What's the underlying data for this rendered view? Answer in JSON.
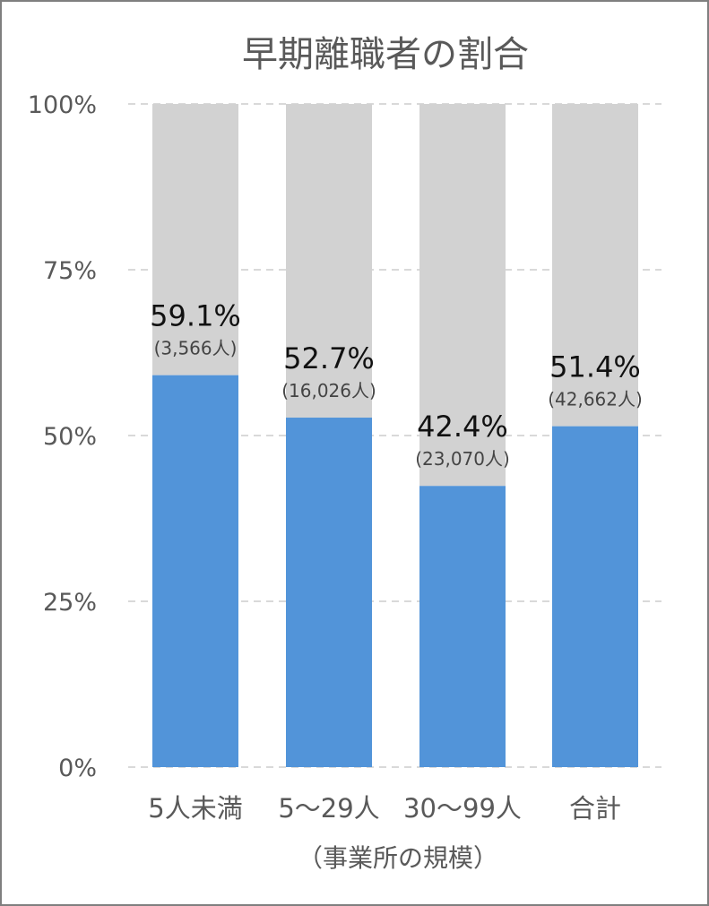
{
  "chart_data": {
    "type": "bar",
    "stacked_percent": true,
    "title": "早期離職者の割合",
    "xlabel": "（事業所の規模）",
    "ylabel": "",
    "categories": [
      "5人未満",
      "5～29人",
      "30～99人",
      "合計"
    ],
    "series": [
      {
        "values": [
          59.1,
          52.7,
          42.4,
          51.4
        ]
      },
      {
        "values": [
          40.9,
          47.3,
          57.6,
          48.6
        ]
      }
    ],
    "data_labels": [
      "59.1%",
      "52.7%",
      "42.4%",
      "51.4%"
    ],
    "sub_labels": [
      "(3,566人)",
      "(16,026人)",
      "(23,070人)",
      "(42,662人)"
    ],
    "ylim": [
      0,
      100
    ],
    "yticks": [
      0,
      25,
      50,
      75,
      100
    ],
    "ytick_labels": [
      "0%",
      "25%",
      "50%",
      "75%",
      "100%"
    ],
    "grid": true,
    "legend": "none",
    "colors": {
      "primary": "#5294d9",
      "remainder": "#d2d2d2",
      "text": "#595959",
      "label": "#111111",
      "sublabel": "#444444",
      "grid": "#d9d9d9"
    }
  }
}
